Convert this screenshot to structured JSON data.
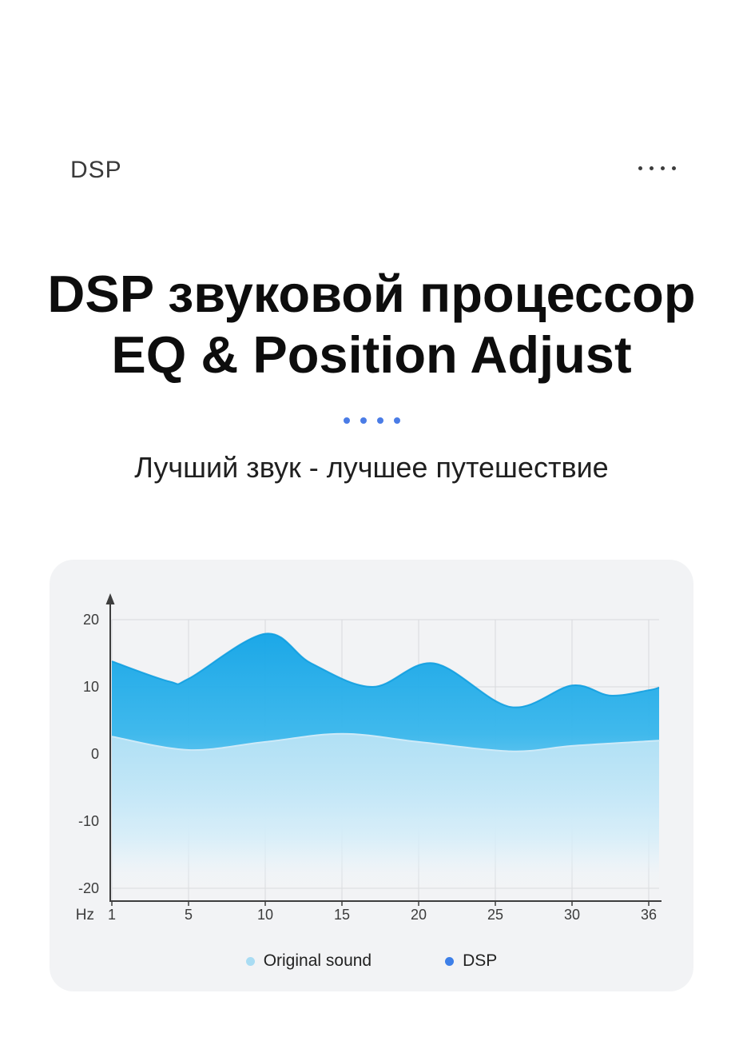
{
  "header": {
    "brand": "DSP",
    "menu_dots_icon": "four-dots-icon"
  },
  "title": {
    "line1": "DSP звуковой процессор",
    "line2": "EQ & Position Adjust"
  },
  "separator": {
    "dot_color": "#4A7CE6",
    "dot_count": 4
  },
  "subtitle": "Лучший звук - лучшее путешествие",
  "chart_data": {
    "type": "area",
    "title": "",
    "xlabel": "Hz",
    "ylabel": "",
    "x_ticks": [
      1,
      5,
      10,
      15,
      20,
      25,
      30,
      36
    ],
    "y_ticks": [
      20,
      10,
      0,
      -10,
      -20
    ],
    "ylim": [
      -20,
      20
    ],
    "grid": true,
    "legend_position": "bottom",
    "series": [
      {
        "name": "Original sound",
        "color": "#A9DCF3",
        "legend_color": "#A9DCF3",
        "points": [
          [
            1,
            2.6
          ],
          [
            5,
            0.6
          ],
          [
            10,
            1.8
          ],
          [
            15,
            3.0
          ],
          [
            20,
            1.8
          ],
          [
            26,
            0.4
          ],
          [
            30,
            1.2
          ],
          [
            36,
            1.9
          ],
          [
            37,
            2.0
          ]
        ]
      },
      {
        "name": "DSP",
        "color": "#12A5E8",
        "legend_color": "#3D7FE8",
        "points": [
          [
            1,
            13.8
          ],
          [
            4,
            10.8
          ],
          [
            5,
            11.2
          ],
          [
            10,
            17.9
          ],
          [
            13,
            13.5
          ],
          [
            17,
            10.0
          ],
          [
            21,
            13.5
          ],
          [
            26,
            7.0
          ],
          [
            30,
            10.2
          ],
          [
            33,
            8.7
          ],
          [
            36,
            9.5
          ],
          [
            37,
            9.9
          ]
        ]
      }
    ]
  }
}
